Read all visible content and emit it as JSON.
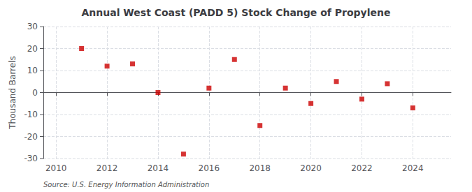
{
  "chart_data": {
    "type": "scatter",
    "title": "Annual West Coast (PADD 5) Stock Change of Propylene",
    "ylabel": "Thousand Barrels",
    "annotation": "Source: U.S. Energy Information Administration",
    "x": [
      2011,
      2012,
      2013,
      2014,
      2015,
      2016,
      2017,
      2018,
      2019,
      2020,
      2021,
      2022,
      2023,
      2024
    ],
    "values": [
      20,
      12,
      13,
      0,
      -28,
      2,
      15,
      -15,
      2,
      -5,
      5,
      -3,
      4,
      -7
    ],
    "xlim": [
      2009.5,
      2025.5
    ],
    "ylim": [
      -30,
      30
    ],
    "xticks": [
      2010,
      2012,
      2014,
      2016,
      2018,
      2020,
      2022,
      2024
    ],
    "yticks": [
      -30,
      -20,
      -10,
      0,
      10,
      20,
      30
    ],
    "color": "#cc0000",
    "marker": "square",
    "grid": true
  }
}
